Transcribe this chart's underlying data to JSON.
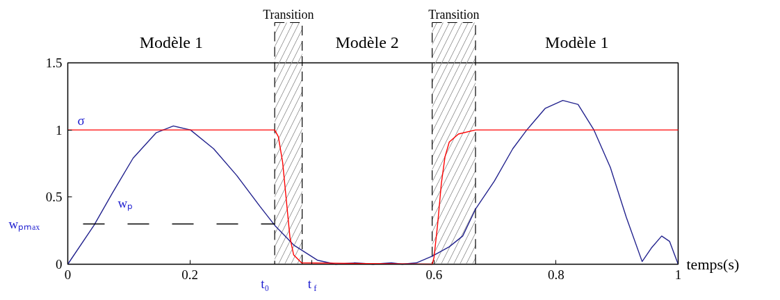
{
  "chart_data": {
    "type": "line",
    "xlabel": "temps(s)",
    "xlim": [
      0,
      1
    ],
    "ylim": [
      0,
      1.5
    ],
    "xticks": [
      0,
      0.2,
      {
        "value": 0.4,
        "label": null
      },
      0.6,
      0.8,
      1
    ],
    "yticks": [
      0,
      0.5,
      1,
      1.5
    ],
    "grid": false,
    "marker": "none",
    "series": [
      {
        "name": "wₚ",
        "color": "#23238e",
        "x": [
          0,
          0.043,
          0.073,
          0.107,
          0.145,
          0.173,
          0.201,
          0.239,
          0.277,
          0.315,
          0.339,
          0.371,
          0.409,
          0.439,
          0.47,
          0.5,
          0.53,
          0.548,
          0.571,
          0.597,
          0.625,
          0.647,
          0.668,
          0.699,
          0.729,
          0.752,
          0.782,
          0.811,
          0.836,
          0.862,
          0.889,
          0.915,
          0.941,
          0.956,
          0.973,
          0.986,
          1.0
        ],
        "values": [
          0,
          0.29,
          0.53,
          0.79,
          0.98,
          1.03,
          1.0,
          0.86,
          0.66,
          0.43,
          0.29,
          0.14,
          0.03,
          0,
          0.01,
          0,
          0.01,
          0,
          0.01,
          0.06,
          0.13,
          0.21,
          0.41,
          0.62,
          0.86,
          1.0,
          1.16,
          1.22,
          1.19,
          1.0,
          0.72,
          0.35,
          0.02,
          0.12,
          0.21,
          0.17,
          0
        ]
      },
      {
        "name": "σ",
        "color": "#ff0000",
        "x": [
          0,
          0.339,
          0.345,
          0.352,
          0.358,
          0.364,
          0.37,
          0.383,
          0.597,
          0.6,
          0.606,
          0.612,
          0.618,
          0.625,
          0.64,
          0.668,
          1.0
        ],
        "values": [
          1,
          1,
          0.95,
          0.76,
          0.48,
          0.2,
          0.07,
          0.01,
          0,
          0.05,
          0.3,
          0.6,
          0.8,
          0.91,
          0.97,
          1,
          1
        ]
      },
      {
        "name": "wₚₘₐₓ",
        "color": "#000000",
        "line_style": "dashed",
        "x": [
          0,
          0.339
        ],
        "values": [
          0.3,
          0.3
        ]
      }
    ],
    "bands": [
      {
        "axis": "x",
        "from": 0.339,
        "to": 0.384,
        "label": "Transition",
        "color": "#000000"
      },
      {
        "axis": "x",
        "from": 0.597,
        "to": 0.668,
        "label": "Transition",
        "color": "#000000"
      }
    ],
    "annotations": [
      "Modèle 1",
      "Modèle 2",
      "Modèle 1",
      {
        "text": "t₀",
        "x": 0.339,
        "y": 0
      },
      {
        "text": "t$_{f}$",
        "x": 0.384,
        "y": 0
      }
    ]
  }
}
